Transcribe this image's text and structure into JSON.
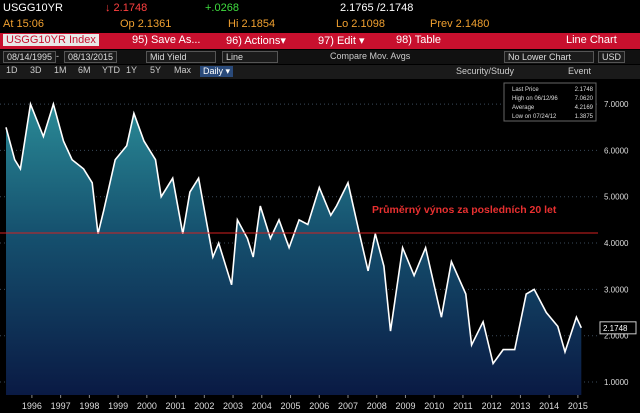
{
  "header": {
    "ticker": "USGG10YR",
    "last": "↓ 2.1748",
    "change": "+.0268",
    "bid_ask": "2.1765 /2.1748",
    "time": "At 15:06",
    "open": "Op 2.1361",
    "high": "Hi 2.1854",
    "low": "Lo 2.1098",
    "prev": "Prev 2.1480"
  },
  "toolbar": {
    "security": "USGG10YR Index",
    "save": "95) Save As...",
    "actions": "96) Actions▾",
    "edit": "97) Edit ▾",
    "table": "98) Table",
    "view": "Line Chart"
  },
  "settings": {
    "start": "08/14/1995",
    "dash": "-",
    "end": "08/13/2015",
    "field": "Mid Yield",
    "style": "Line",
    "compare": "Compare Mov. Avgs",
    "lower": "No Lower Chart",
    "currency": "USD"
  },
  "periods": {
    "buttons": [
      "1D",
      "3D",
      "1M",
      "6M",
      "YTD",
      "1Y",
      "5Y",
      "Max"
    ],
    "frequency": "Daily ▾",
    "study": "Security/Study",
    "event": "Event"
  },
  "chart_data": {
    "type": "line",
    "x": [
      1995.6,
      1995.9,
      1996.1,
      1996.45,
      1996.9,
      1997.25,
      1997.6,
      1997.9,
      1998.3,
      1998.6,
      1998.8,
      1999.0,
      1999.4,
      1999.8,
      2000.05,
      2000.4,
      2000.8,
      2001.0,
      2001.4,
      2001.75,
      2002.0,
      2002.3,
      2002.8,
      2003.0,
      2003.45,
      2003.65,
      2004.0,
      2004.2,
      2004.45,
      2004.8,
      2005.1,
      2005.45,
      2005.8,
      2006.1,
      2006.5,
      2006.9,
      2007.1,
      2007.5,
      2007.9,
      2008.2,
      2008.45,
      2008.75,
      2008.98,
      2009.4,
      2009.8,
      2010.2,
      2010.75,
      2011.1,
      2011.6,
      2011.8,
      2012.2,
      2012.55,
      2012.9,
      2013.3,
      2013.7,
      2013.98,
      2014.4,
      2014.8,
      2015.05,
      2015.45,
      2015.62
    ],
    "series": [
      {
        "name": "Last Price",
        "color": "#ffffff",
        "values": [
          6.5,
          5.8,
          5.6,
          7.0,
          6.3,
          7.0,
          6.2,
          5.8,
          5.6,
          5.3,
          4.2,
          4.7,
          5.8,
          6.1,
          6.8,
          6.2,
          5.8,
          5.0,
          5.4,
          4.2,
          5.1,
          5.4,
          3.7,
          4.0,
          3.1,
          4.5,
          4.1,
          3.7,
          4.8,
          4.1,
          4.5,
          3.9,
          4.5,
          4.4,
          5.2,
          4.6,
          4.8,
          5.3,
          4.2,
          3.4,
          4.2,
          3.5,
          2.1,
          3.9,
          3.3,
          3.9,
          2.4,
          3.6,
          2.9,
          1.8,
          2.3,
          1.4,
          1.7,
          1.7,
          2.9,
          3.0,
          2.5,
          2.2,
          1.65,
          2.4,
          2.17
        ]
      }
    ],
    "xlim": [
      1995.39,
      2016.2
    ],
    "xticks": [
      {
        "value": 1996.5,
        "label": "1996"
      },
      {
        "value": 1997.5,
        "label": "1997"
      },
      {
        "value": 1998.5,
        "label": "1998"
      },
      {
        "value": 1999.5,
        "label": "1999"
      },
      {
        "value": 2000.5,
        "label": "2000"
      },
      {
        "value": 2001.5,
        "label": "2001"
      },
      {
        "value": 2002.5,
        "label": "2002"
      },
      {
        "value": 2003.5,
        "label": "2003"
      },
      {
        "value": 2004.5,
        "label": "2004"
      },
      {
        "value": 2005.5,
        "label": "2005"
      },
      {
        "value": 2006.5,
        "label": "2006"
      },
      {
        "value": 2007.5,
        "label": "2007"
      },
      {
        "value": 2008.5,
        "label": "2008"
      },
      {
        "value": 2009.5,
        "label": "2009"
      },
      {
        "value": 2010.5,
        "label": "2010"
      },
      {
        "value": 2011.5,
        "label": "2011"
      },
      {
        "value": 2012.5,
        "label": "2012"
      },
      {
        "value": 2013.5,
        "label": "2013"
      },
      {
        "value": 2014.5,
        "label": "2014"
      },
      {
        "value": 2015.5,
        "label": "2015"
      }
    ],
    "ylim": [
      0.72,
      7.52
    ],
    "yticks": [
      {
        "value": 1,
        "label": "1.0000"
      },
      {
        "value": 2,
        "label": "2.0000"
      },
      {
        "value": 3,
        "label": "3.0000"
      },
      {
        "value": 4,
        "label": "4.0000"
      },
      {
        "value": 5,
        "label": "5.0000"
      },
      {
        "value": 6,
        "label": "6.0000"
      },
      {
        "value": 7,
        "label": "7.0000"
      }
    ],
    "grid": true,
    "average_line": {
      "value": 4.2169,
      "label": "Průměrný výnos za posledních 20 let",
      "color": "#d42020"
    },
    "last_tag": "2.1748",
    "legend": [
      {
        "name": "Last Price",
        "value": "2.1748"
      },
      {
        "name": "High on 06/12/96",
        "value": "7.0620"
      },
      {
        "name": "Average",
        "value": "4.2169"
      },
      {
        "name": "Low on 07/24/12",
        "value": "1.3875"
      }
    ]
  }
}
